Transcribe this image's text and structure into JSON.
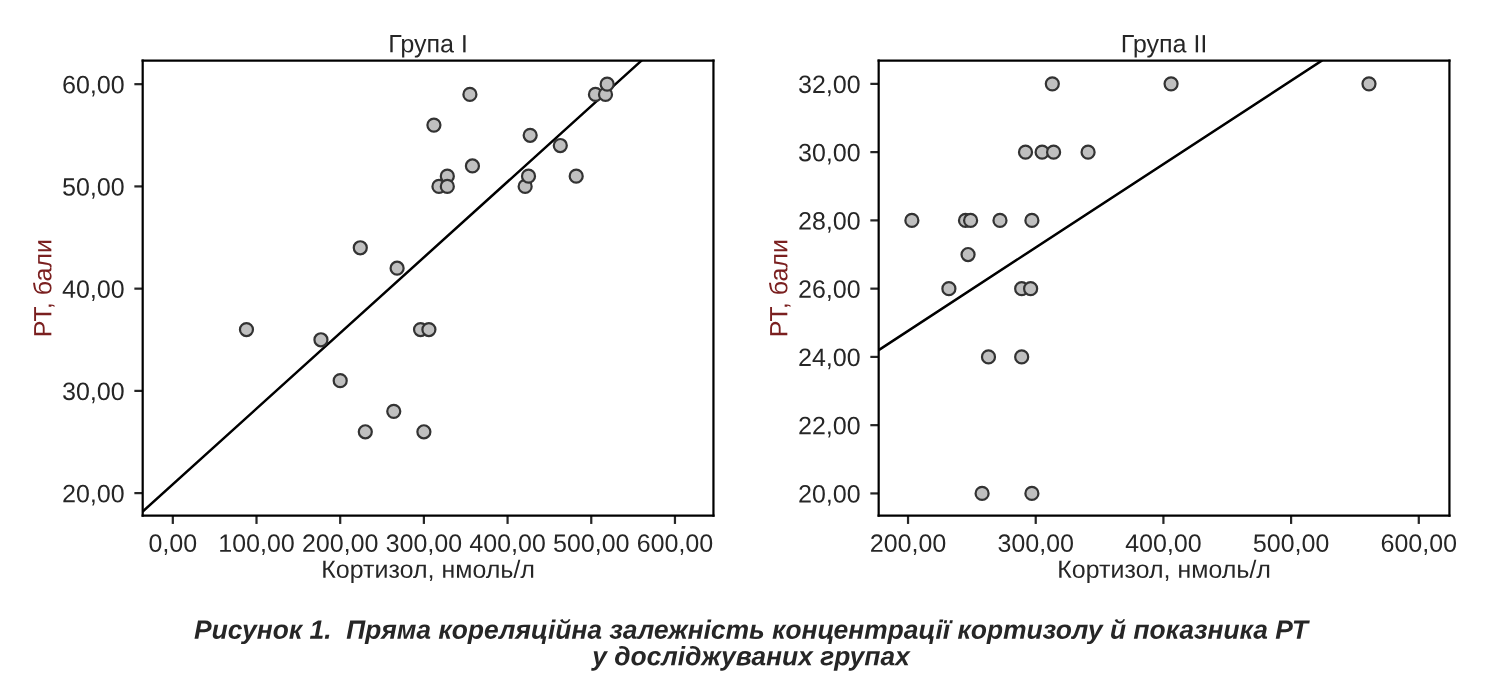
{
  "chart_data": [
    {
      "type": "scatter",
      "title": "Група I",
      "xlabel": "Кортизол, нмоль/л",
      "ylabel": "РТ, бали",
      "xlim": [
        -36,
        646
      ],
      "ylim": [
        17.8,
        62.3
      ],
      "xticks": [
        {
          "value": 0,
          "label": "0,00"
        },
        {
          "value": 100,
          "label": "100,00"
        },
        {
          "value": 200,
          "label": "200,00"
        },
        {
          "value": 300,
          "label": "300,00"
        },
        {
          "value": 400,
          "label": "400,00"
        },
        {
          "value": 500,
          "label": "500,00"
        },
        {
          "value": 600,
          "label": "600,00"
        }
      ],
      "yticks": [
        {
          "value": 20,
          "label": "20,00"
        },
        {
          "value": 30,
          "label": "30,00"
        },
        {
          "value": 40,
          "label": "40,00"
        },
        {
          "value": 50,
          "label": "50,00"
        },
        {
          "value": 60,
          "label": "60,00"
        }
      ],
      "grid": false,
      "series": [
        {
          "marker": "circle",
          "color": "#c0c0c0",
          "x": [
            88,
            177,
            200,
            224,
            230,
            264,
            268,
            296,
            306,
            300,
            312,
            318,
            328,
            328,
            355,
            358,
            421,
            425,
            427,
            463,
            482,
            505,
            517,
            519
          ],
          "values": [
            36,
            35,
            31,
            44,
            26,
            28,
            42,
            36,
            36,
            26,
            56,
            50,
            51,
            50,
            59,
            52,
            50,
            51,
            55,
            54,
            51,
            59,
            59,
            60
          ]
        },
        {
          "type": "line",
          "marker": "none",
          "color": "#000000",
          "x": [
            -36,
            560
          ],
          "values": [
            18.2,
            62.3
          ]
        }
      ],
      "annotations": [
        "Рисунок 1.  Пряма кореляційна залежність концентрації кортизолу й показника РТ\nу досліджуваних групах"
      ]
    },
    {
      "type": "scatter",
      "title": "Група II",
      "xlabel": "Кортизол, нмоль/л",
      "ylabel": "РТ, бали",
      "xlim": [
        177,
        624
      ],
      "ylim": [
        19.35,
        32.68
      ],
      "xticks": [
        {
          "value": 200,
          "label": "200,00"
        },
        {
          "value": 300,
          "label": "300,00"
        },
        {
          "value": 400,
          "label": "400,00"
        },
        {
          "value": 500,
          "label": "500,00"
        },
        {
          "value": 600,
          "label": "600,00"
        }
      ],
      "yticks": [
        {
          "value": 20,
          "label": "20,00"
        },
        {
          "value": 22,
          "label": "22,00"
        },
        {
          "value": 24,
          "label": "24,00"
        },
        {
          "value": 26,
          "label": "26,00"
        },
        {
          "value": 28,
          "label": "28,00"
        },
        {
          "value": 30,
          "label": "30,00"
        },
        {
          "value": 32,
          "label": "32,00"
        }
      ],
      "grid": false,
      "series": [
        {
          "marker": "circle",
          "color": "#c0c0c0",
          "x": [
            203,
            232,
            245,
            249,
            247,
            263,
            258,
            272,
            289,
            296,
            289,
            297,
            297,
            292,
            305,
            314,
            341,
            313,
            406,
            561
          ],
          "values": [
            28,
            26,
            28,
            28,
            27,
            24,
            20,
            28,
            26,
            26,
            24,
            28,
            20,
            30,
            30,
            30,
            30,
            32,
            32,
            32
          ]
        },
        {
          "type": "line",
          "marker": "none",
          "color": "#000000",
          "x": [
            177,
            524
          ],
          "values": [
            24.2,
            32.68
          ]
        }
      ]
    }
  ]
}
